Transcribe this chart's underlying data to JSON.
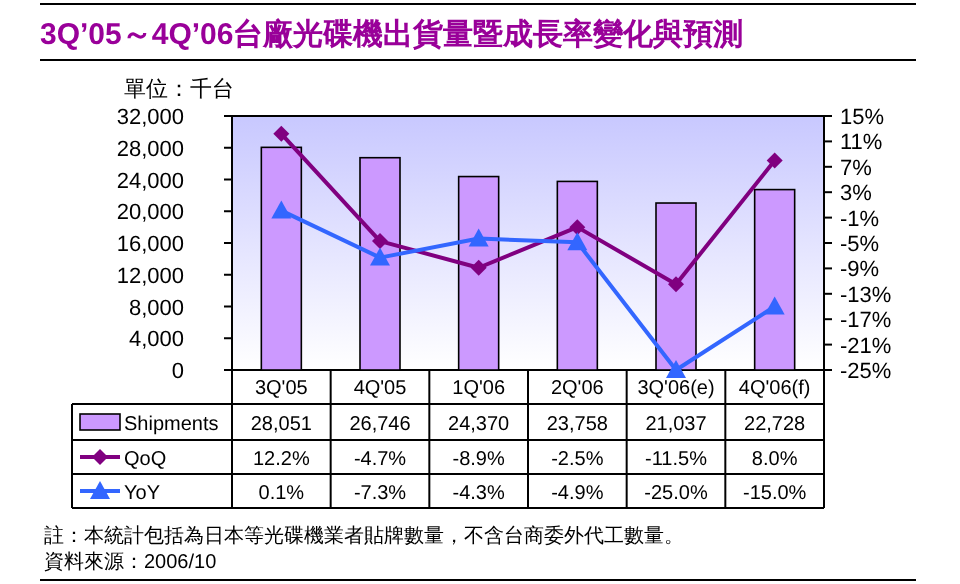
{
  "chart_data": {
    "type": "bar",
    "title": "3Q’05～4Q’06台廠光碟機出貨量暨成長率變化與預測",
    "ylabel": "單位：千台",
    "categories": [
      "3Q'05",
      "4Q'05",
      "1Q'06",
      "2Q'06",
      "3Q'06(e)",
      "4Q'06(f)"
    ],
    "series": [
      {
        "name": "Shipments",
        "color": "#cc99ff",
        "values": [
          28051,
          26746,
          24370,
          23758,
          21037,
          22728
        ],
        "value_labels": [
          "28,051",
          "26,746",
          "24,370",
          "23,758",
          "21,037",
          "22,728"
        ]
      },
      {
        "name": "QoQ",
        "type": "line",
        "axis": "y2",
        "color": "#800080",
        "marker": "diamond",
        "values": [
          12.2,
          -4.7,
          -8.9,
          -2.5,
          -11.5,
          8.0
        ],
        "value_labels": [
          "12.2%",
          "-4.7%",
          "-8.9%",
          "-2.5%",
          "-11.5%",
          "8.0%"
        ]
      },
      {
        "name": "YoY",
        "type": "line",
        "axis": "y2",
        "color": "#3366ff",
        "marker": "triangle",
        "values": [
          0.1,
          -7.3,
          -4.3,
          -4.9,
          -25.0,
          -15.0
        ],
        "value_labels": [
          "0.1%",
          "-7.3%",
          "-4.3%",
          "-4.9%",
          "-25.0%",
          "-15.0%"
        ]
      }
    ],
    "ylim": [
      0,
      32000
    ],
    "yticks": [
      {
        "value": 0,
        "label": "0"
      },
      {
        "value": 4000,
        "label": "4,000"
      },
      {
        "value": 8000,
        "label": "8,000"
      },
      {
        "value": 12000,
        "label": "12,000"
      },
      {
        "value": 16000,
        "label": "16,000"
      },
      {
        "value": 20000,
        "label": "20,000"
      },
      {
        "value": 24000,
        "label": "24,000"
      },
      {
        "value": 28000,
        "label": "28,000"
      },
      {
        "value": 32000,
        "label": "32,000"
      }
    ],
    "y2lim": [
      -25,
      15
    ],
    "y2ticks": [
      {
        "value": 15,
        "label": "15%"
      },
      {
        "value": 11,
        "label": "11%"
      },
      {
        "value": 7,
        "label": "7%"
      },
      {
        "value": 3,
        "label": "3%"
      },
      {
        "value": -1,
        "label": "-1%"
      },
      {
        "value": -5,
        "label": "-5%"
      },
      {
        "value": -9,
        "label": "-9%"
      },
      {
        "value": -13,
        "label": "-13%"
      },
      {
        "value": -17,
        "label": "-17%"
      },
      {
        "value": -21,
        "label": "-21%"
      },
      {
        "value": -25,
        "label": "-25%"
      }
    ],
    "data_labels": true,
    "legend": "bottom",
    "grid": false,
    "annotations": [
      "註：本統計包括為日本等光碟機業者貼牌數量，不含台商委外代工數量。",
      "資料來源：2006/10"
    ]
  }
}
